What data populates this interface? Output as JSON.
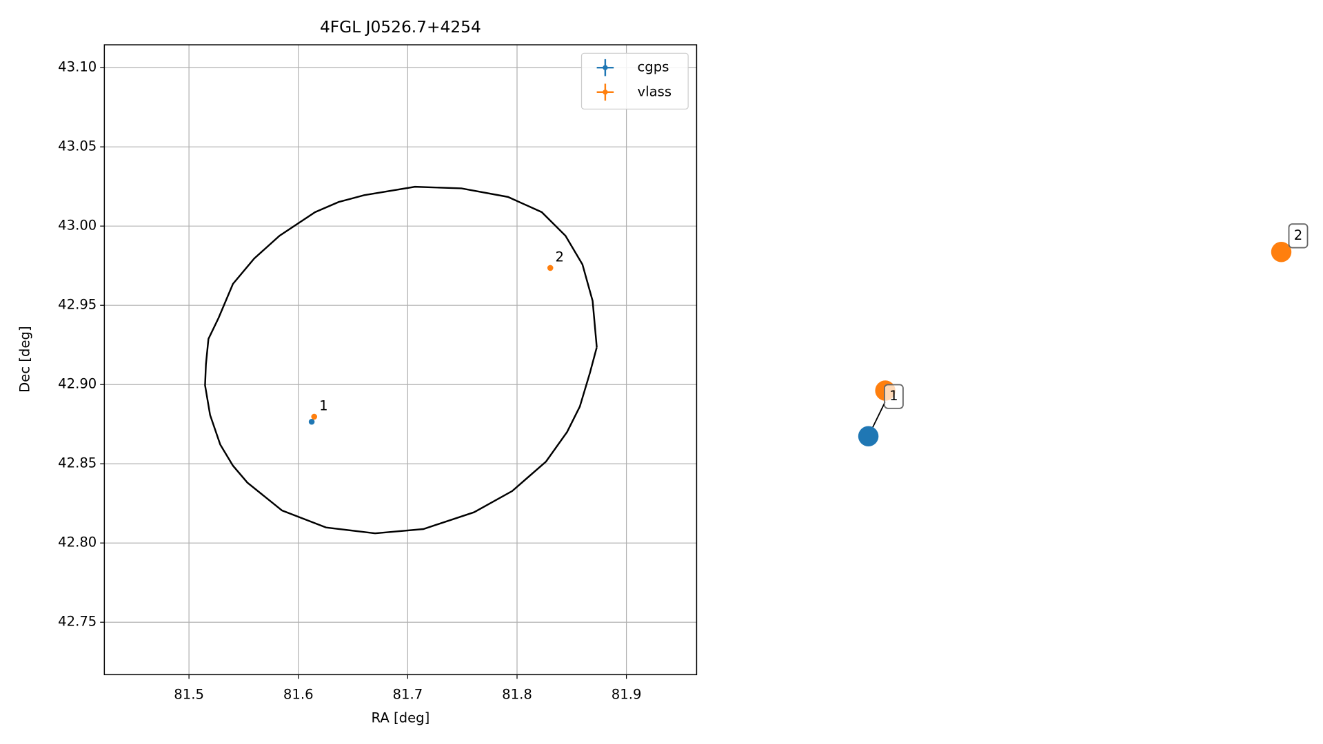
{
  "chart_data": [
    {
      "type": "scatter",
      "title": "4FGL J0526.7+4254",
      "x_label": "RA [deg]",
      "y_label": "Dec [deg]",
      "xlim": [
        81.4226,
        81.9642
      ],
      "ylim": [
        42.7169,
        43.1144
      ],
      "xticks": [
        81.5,
        81.6,
        81.7,
        81.8,
        81.9
      ],
      "yticks": [
        {
          "value": 42.75,
          "label": "42.75"
        },
        {
          "value": 42.8,
          "label": "42.80"
        },
        42.85,
        {
          "value": 42.9,
          "label": "42.90"
        },
        42.95,
        {
          "value": 43.0,
          "label": "43.00"
        },
        43.05,
        {
          "value": 43.1,
          "label": "43.10"
        }
      ],
      "grid": true,
      "legend": "upper right",
      "series": [
        {
          "name": "cgps",
          "color": "#1f77b4",
          "x": [
            81.6122
          ],
          "values": [
            42.8765
          ]
        },
        {
          "name": "vlass",
          "color": "#ff7f0e",
          "x": [
            81.6145,
            81.8304
          ],
          "values": [
            42.8797,
            42.9736
          ],
          "point_labels": [
            "1",
            "2"
          ]
        }
      ],
      "ellipse": {
        "color": "#000000",
        "x": [
          81.8729,
          81.8691,
          81.8598,
          81.8443,
          81.8226,
          81.7917,
          81.7491,
          81.7066,
          81.6602,
          81.6369,
          81.6153,
          81.5828,
          81.5596,
          81.5402,
          81.5271,
          81.5178,
          81.5155,
          81.5147,
          81.5193,
          81.5286,
          81.5402,
          81.5534,
          81.5851,
          81.6253,
          81.6702,
          81.7143,
          81.7607,
          81.7956,
          81.8265,
          81.8458,
          81.8574,
          81.8667,
          81.8729
        ],
        "y": [
          42.9235,
          42.9528,
          42.9758,
          42.9939,
          43.0088,
          43.0184,
          43.0238,
          43.0248,
          43.0195,
          43.0152,
          43.0088,
          42.9939,
          42.9795,
          42.9635,
          42.9421,
          42.9288,
          42.9128,
          42.8995,
          42.8808,
          42.8621,
          42.8488,
          42.8381,
          42.8205,
          42.8098,
          42.8061,
          42.8088,
          42.8194,
          42.8328,
          42.8514,
          42.8701,
          42.8861,
          42.9075,
          42.9235
        ]
      }
    },
    {
      "type": "network",
      "nodes": [
        {
          "color": "#1f77b4"
        },
        {
          "color": "#ff7f0e"
        },
        {
          "color": "#ff7f0e"
        }
      ],
      "labels": [
        "1",
        "2"
      ]
    }
  ]
}
